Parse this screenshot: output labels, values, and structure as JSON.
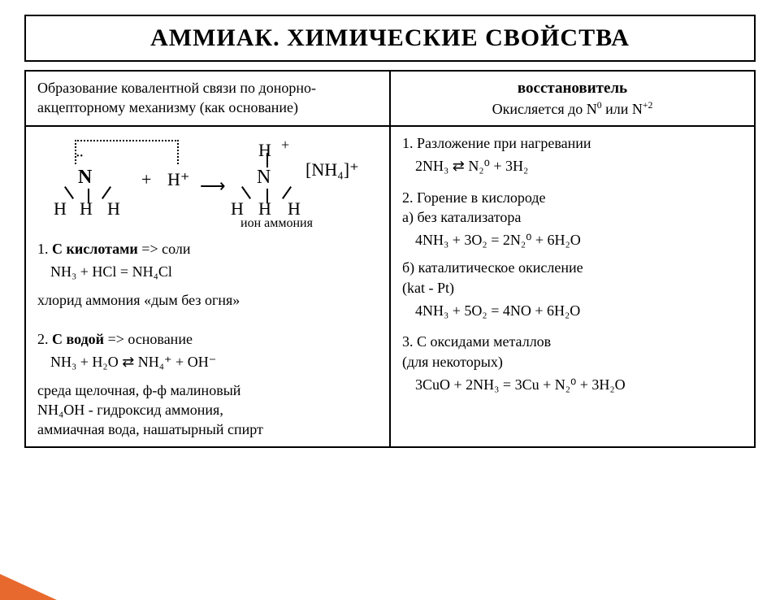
{
  "title": "АММИАК. ХИМИЧЕСКИЕ СВОЙСТВА",
  "header_left": "Образование ковалентной связи по донорно-акцепторному механизму (как основание)",
  "header_right_bold": "восстановитель",
  "header_right_line2_pre": "Окисляется до N",
  "header_right_sup1": "0",
  "header_right_mid": " или N",
  "header_right_sup2": "+2",
  "diagram": {
    "N": "N",
    "H": "H",
    "plus": "+",
    "Hplus": "H⁺",
    "arrow": "⟶",
    "nh4": "[NH₄]⁺",
    "ion_label": "ион аммония",
    "dots": "••"
  },
  "left": {
    "l1a": "1. ",
    "l1b": "С кислотами",
    "l1c": " => соли",
    "l2": "NH₃ + HCl = NH₄Cl",
    "l3a": "хлорид аммония ",
    "l3b": "«дым без огня»",
    "l4a": "2. ",
    "l4b": "С водой",
    "l4c": " => основание",
    "l5": "NH₃ + H₂O ⇄ NH₄⁺ + OH⁻",
    "l6": "среда щелочная, ф-ф малиновый",
    "l7": "NH₄OH - гидроксид аммония,",
    "l8": "аммиачная вода, нашатырный спирт"
  },
  "right": {
    "r1": "1. Разложение при нагревании",
    "r1eq": "2NH₃ ⇄ N₂⁰ + 3H₂",
    "r2": "2. Горение в кислороде",
    "r2a": "а) без катализатора",
    "r2aeq": "4NH₃ + 3O₂ = 2N₂⁰ + 6H₂O",
    "r2b": "б) каталитическое окисление",
    "r2b2": "(kat - Pt)",
    "r2beq": "4NH₃ + 5O₂ = 4NO + 6H₂O",
    "r3": "3. С оксидами металлов",
    "r3b": "(для некоторых)",
    "r3eq": "3CuO + 2NH₃ = 3Cu + N₂⁰ + 3H₂O"
  },
  "colors": {
    "accent": "#e8692d"
  }
}
